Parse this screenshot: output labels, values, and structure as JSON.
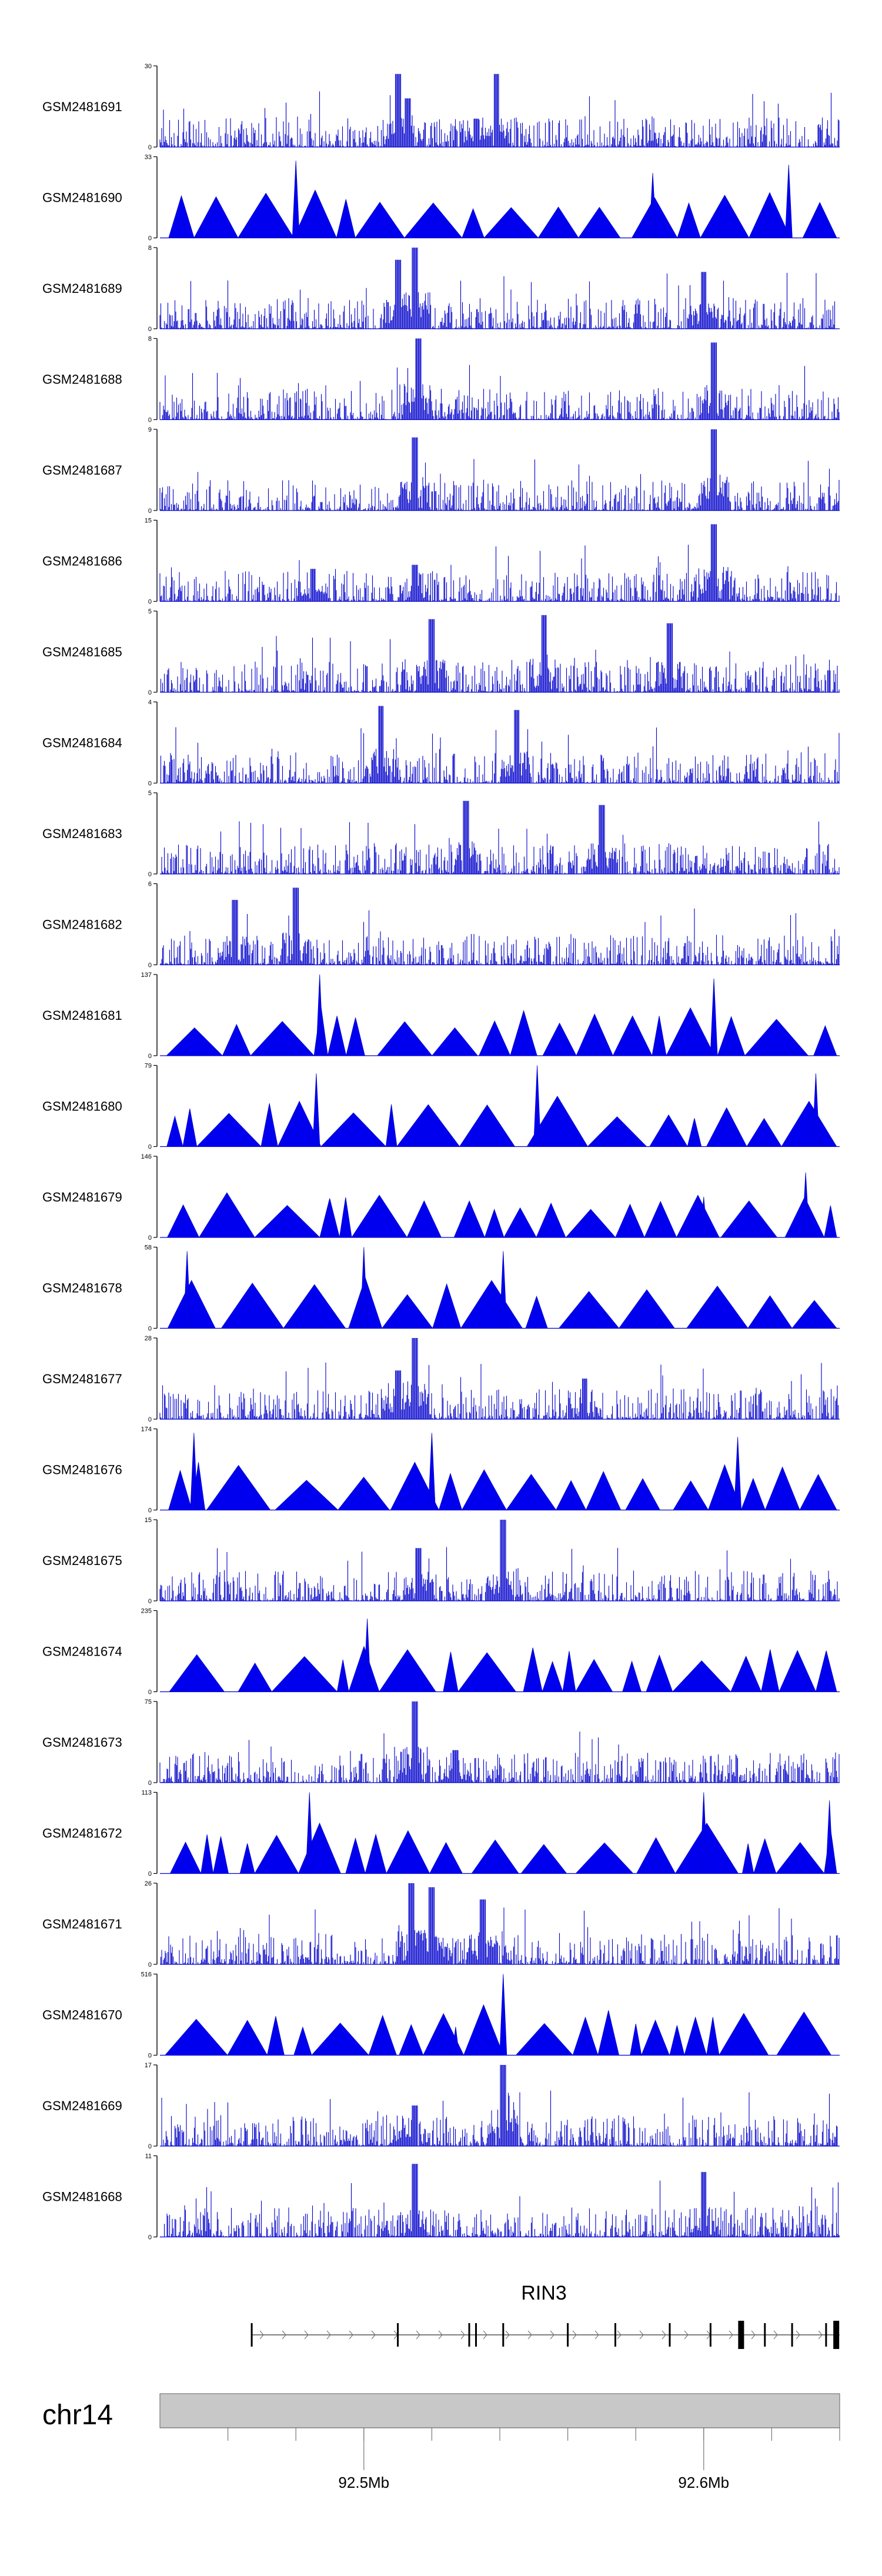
{
  "chart_data": {
    "type": "area",
    "title": "",
    "chromosome": "chr14",
    "x_unit": "Mb",
    "x_range": [
      92.44,
      92.64
    ],
    "x_ticks": [
      {
        "value": 92.5,
        "label": "92.5Mb"
      },
      {
        "value": 92.6,
        "label": "92.6Mb"
      }
    ],
    "gene": {
      "name": "RIN3",
      "start": 92.467,
      "end": 92.64,
      "strand": "+",
      "exons": [
        92.467,
        92.51,
        92.531,
        92.533,
        92.541,
        92.56,
        92.574,
        92.59,
        92.602,
        92.611,
        92.618,
        92.626,
        92.636,
        92.639
      ]
    },
    "tracks": [
      {
        "name": "GSM2481691",
        "ymax": 30,
        "style": "dense",
        "peaks": [
          [
            92.51,
            0.9
          ],
          [
            92.513,
            0.6
          ],
          [
            92.533,
            0.35
          ],
          [
            92.539,
            0.9
          ]
        ]
      },
      {
        "name": "GSM2481690",
        "ymax": 33,
        "style": "sparse",
        "peaks": [
          [
            92.48,
            0.95
          ],
          [
            92.585,
            0.8
          ],
          [
            92.625,
            0.9
          ]
        ]
      },
      {
        "name": "GSM2481689",
        "ymax": 8,
        "style": "dense",
        "peaks": [
          [
            92.515,
            1.0
          ],
          [
            92.51,
            0.85
          ],
          [
            92.6,
            0.7
          ]
        ]
      },
      {
        "name": "GSM2481688",
        "ymax": 8,
        "style": "dense",
        "peaks": [
          [
            92.516,
            1.0
          ],
          [
            92.603,
            0.95
          ]
        ]
      },
      {
        "name": "GSM2481687",
        "ymax": 9,
        "style": "dense",
        "peaks": [
          [
            92.515,
            0.9
          ],
          [
            92.603,
            1.0
          ]
        ]
      },
      {
        "name": "GSM2481686",
        "ymax": 15,
        "style": "dense",
        "peaks": [
          [
            92.603,
            0.95
          ],
          [
            92.515,
            0.45
          ],
          [
            92.485,
            0.4
          ]
        ]
      },
      {
        "name": "GSM2481685",
        "ymax": 5,
        "style": "dense",
        "peaks": [
          [
            92.52,
            0.9
          ],
          [
            92.553,
            0.95
          ],
          [
            92.59,
            0.85
          ]
        ]
      },
      {
        "name": "GSM2481684",
        "ymax": 4,
        "style": "dense",
        "peaks": [
          [
            92.505,
            0.95
          ],
          [
            92.545,
            0.9
          ]
        ]
      },
      {
        "name": "GSM2481683",
        "ymax": 5,
        "style": "dense",
        "peaks": [
          [
            92.53,
            0.9
          ],
          [
            92.57,
            0.85
          ]
        ]
      },
      {
        "name": "GSM2481682",
        "ymax": 6,
        "style": "dense",
        "peaks": [
          [
            92.48,
            0.95
          ],
          [
            92.462,
            0.8
          ]
        ]
      },
      {
        "name": "GSM2481681",
        "ymax": 137,
        "style": "sparse",
        "peaks": [
          [
            92.487,
            1.0
          ],
          [
            92.603,
            0.95
          ]
        ]
      },
      {
        "name": "GSM2481680",
        "ymax": 79,
        "style": "sparse",
        "peaks": [
          [
            92.551,
            1.0
          ],
          [
            92.633,
            0.9
          ],
          [
            92.486,
            0.9
          ]
        ]
      },
      {
        "name": "GSM2481679",
        "ymax": 146,
        "style": "sparse",
        "peaks": [
          [
            92.63,
            0.8
          ],
          [
            92.6,
            0.5
          ]
        ]
      },
      {
        "name": "GSM2481678",
        "ymax": 58,
        "style": "sparse",
        "peaks": [
          [
            92.5,
            1.0
          ],
          [
            92.541,
            0.95
          ],
          [
            92.448,
            0.95
          ]
        ]
      },
      {
        "name": "GSM2481677",
        "ymax": 28,
        "style": "dense",
        "peaks": [
          [
            92.515,
            1.0
          ],
          [
            92.51,
            0.6
          ],
          [
            92.565,
            0.5
          ]
        ]
      },
      {
        "name": "GSM2481676",
        "ymax": 174,
        "style": "sparse",
        "peaks": [
          [
            92.45,
            0.95
          ],
          [
            92.52,
            0.95
          ],
          [
            92.61,
            0.9
          ]
        ]
      },
      {
        "name": "GSM2481675",
        "ymax": 15,
        "style": "dense",
        "peaks": [
          [
            92.541,
            1.0
          ],
          [
            92.516,
            0.65
          ]
        ]
      },
      {
        "name": "GSM2481674",
        "ymax": 235,
        "style": "sparse",
        "peaks": [
          [
            92.501,
            0.9
          ]
        ]
      },
      {
        "name": "GSM2481673",
        "ymax": 75,
        "style": "dense",
        "peaks": [
          [
            92.515,
            1.0
          ],
          [
            92.527,
            0.4
          ]
        ]
      },
      {
        "name": "GSM2481672",
        "ymax": 113,
        "style": "sparse",
        "peaks": [
          [
            92.484,
            1.0
          ],
          [
            92.6,
            1.0
          ],
          [
            92.637,
            0.9
          ]
        ]
      },
      {
        "name": "GSM2481671",
        "ymax": 26,
        "style": "dense",
        "peaks": [
          [
            92.514,
            1.0
          ],
          [
            92.52,
            0.95
          ],
          [
            92.535,
            0.8
          ]
        ]
      },
      {
        "name": "GSM2481670",
        "ymax": 516,
        "style": "sparse",
        "peaks": [
          [
            92.541,
            1.0
          ],
          [
            92.565,
            0.4
          ],
          [
            92.527,
            0.35
          ]
        ]
      },
      {
        "name": "GSM2481669",
        "ymax": 17,
        "style": "dense",
        "peaks": [
          [
            92.541,
            1.0
          ],
          [
            92.515,
            0.5
          ]
        ]
      },
      {
        "name": "GSM2481668",
        "ymax": 11,
        "style": "dense",
        "peaks": [
          [
            92.515,
            0.9
          ],
          [
            92.6,
            0.8
          ]
        ]
      }
    ]
  }
}
